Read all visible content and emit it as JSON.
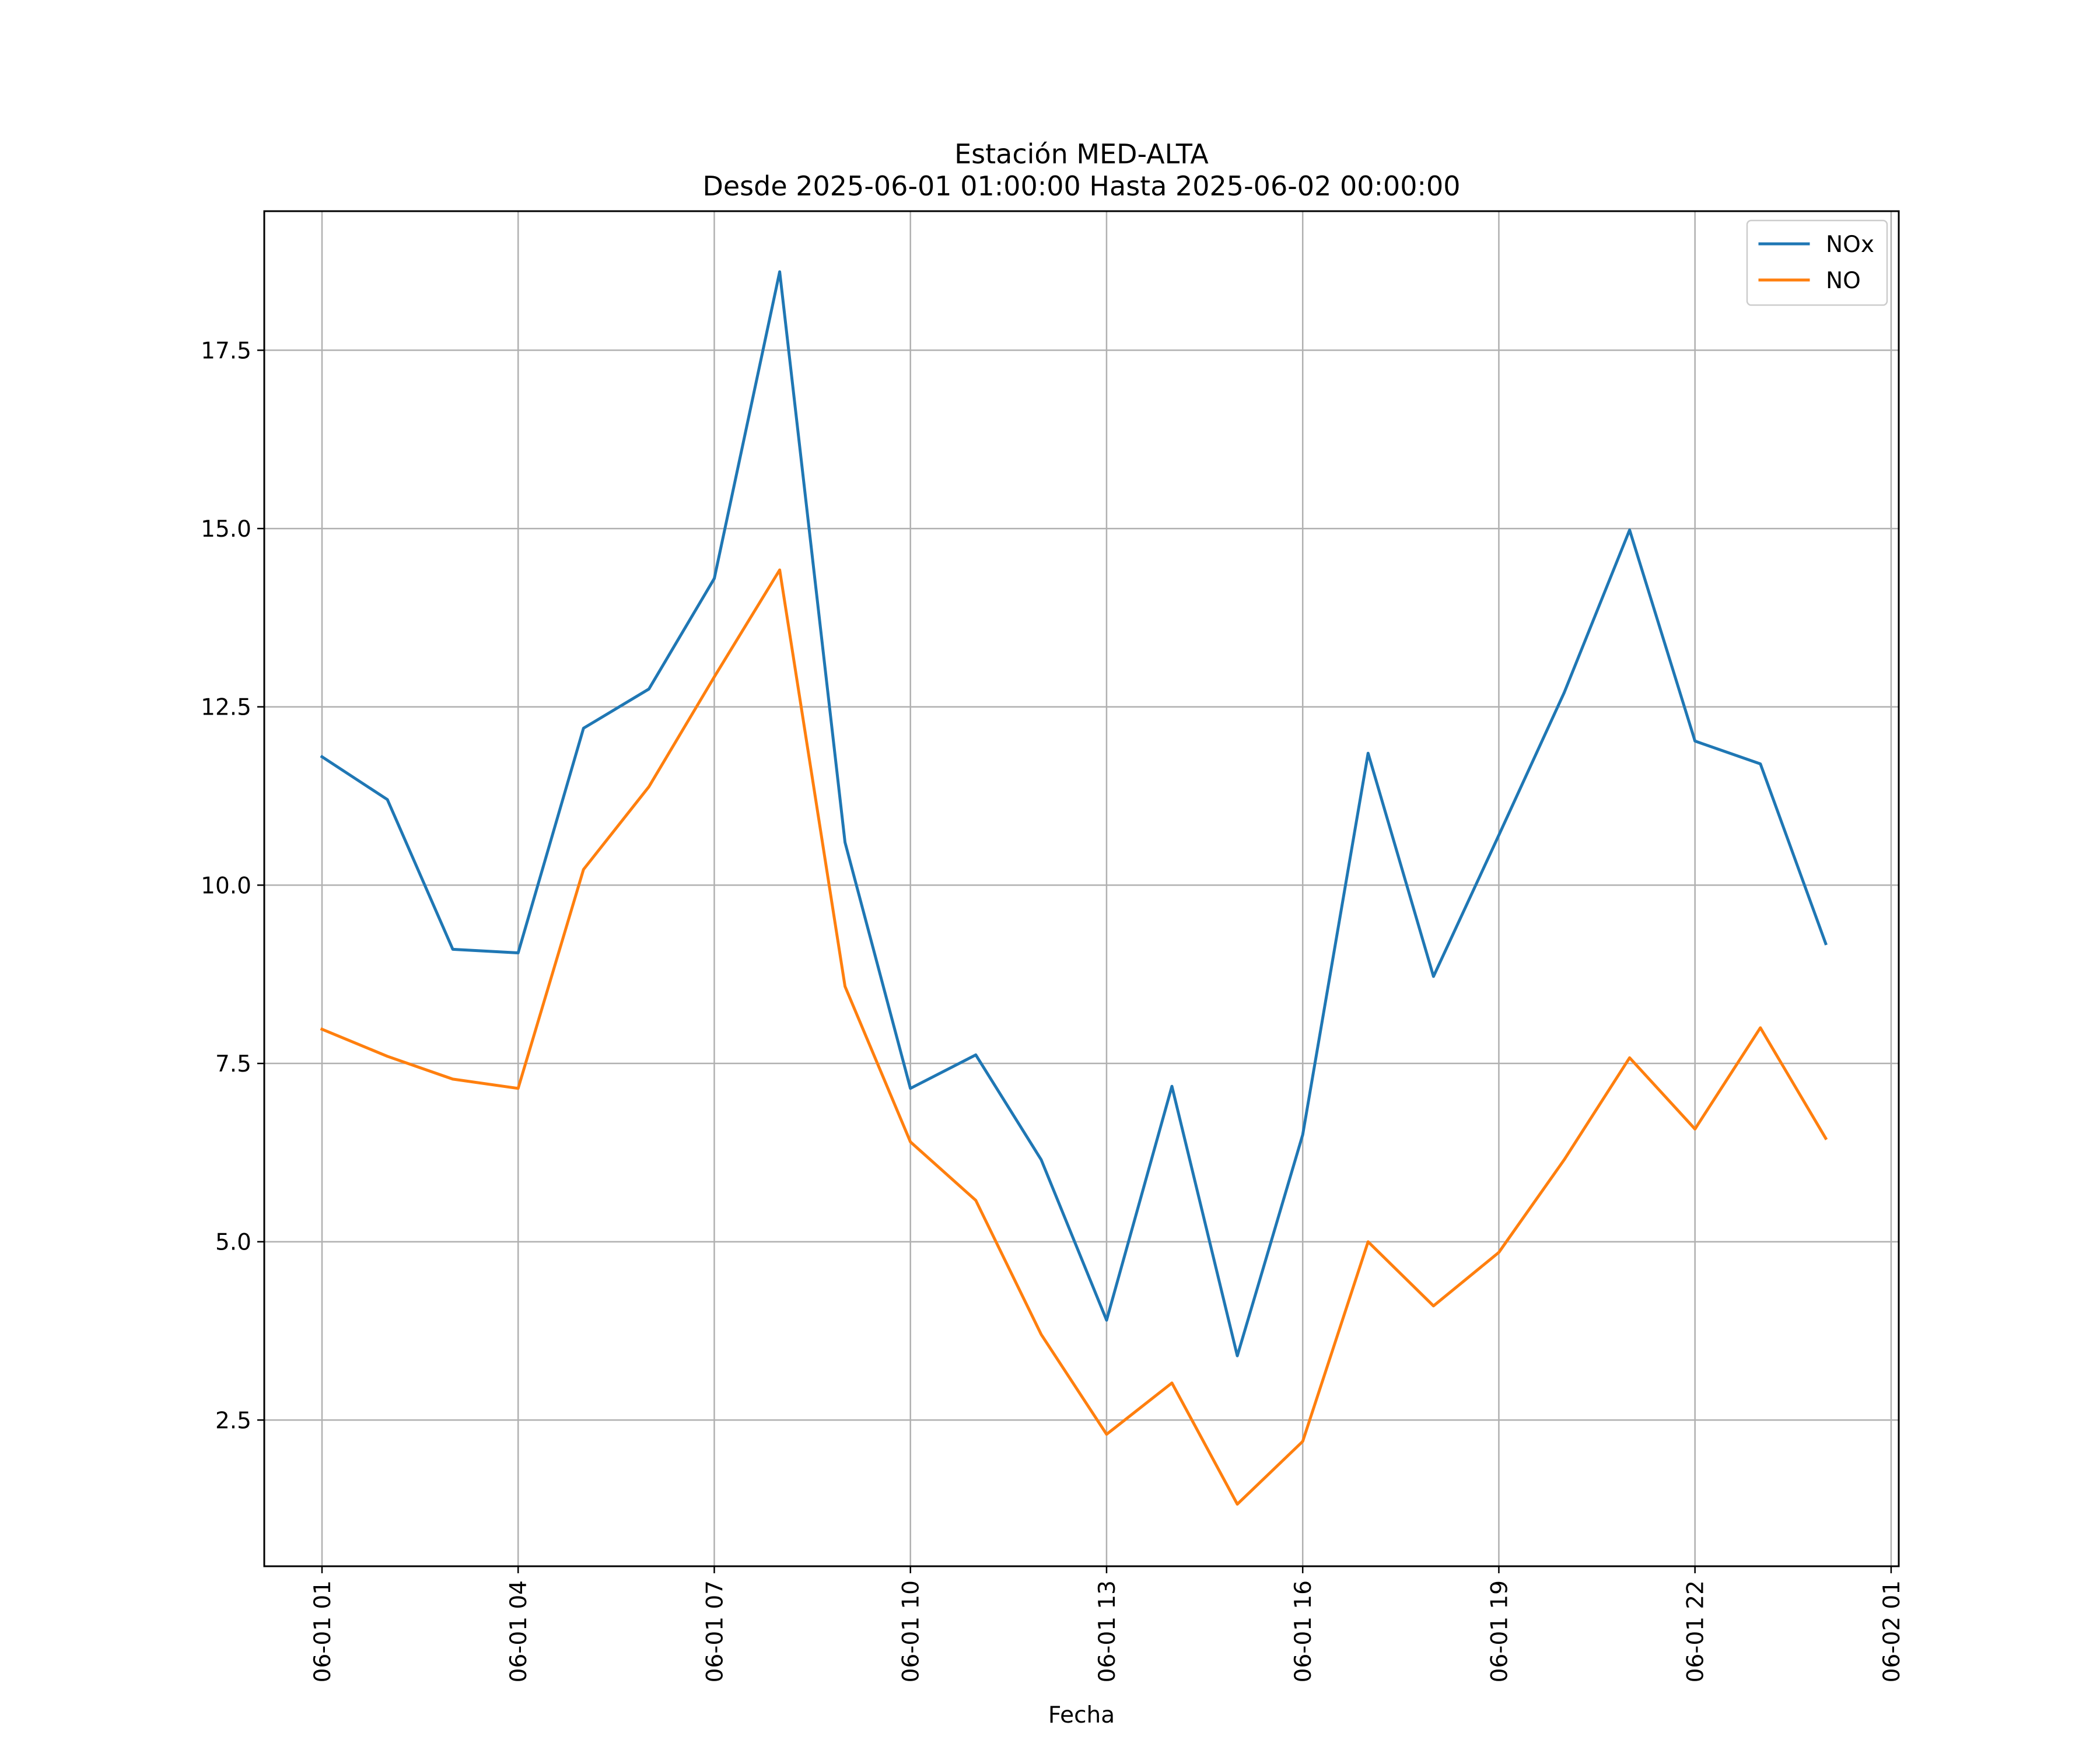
{
  "chart_data": {
    "type": "line",
    "title": "Estación MED-ALTA",
    "subtitle": "Desde 2025-06-01 01:00:00 Hasta 2025-06-02 00:00:00",
    "xlabel": "Fecha",
    "ylabel": "",
    "x": [
      "2025-06-01 01:00",
      "2025-06-01 02:00",
      "2025-06-01 03:00",
      "2025-06-01 04:00",
      "2025-06-01 05:00",
      "2025-06-01 06:00",
      "2025-06-01 07:00",
      "2025-06-01 08:00",
      "2025-06-01 09:00",
      "2025-06-01 10:00",
      "2025-06-01 11:00",
      "2025-06-01 12:00",
      "2025-06-01 13:00",
      "2025-06-01 14:00",
      "2025-06-01 15:00",
      "2025-06-01 16:00",
      "2025-06-01 17:00",
      "2025-06-01 18:00",
      "2025-06-01 19:00",
      "2025-06-01 20:00",
      "2025-06-01 21:00",
      "2025-06-01 22:00",
      "2025-06-01 23:00",
      "2025-06-02 00:00"
    ],
    "xlim": [
      "2025-06-01 00:07",
      "2025-06-02 01:07"
    ],
    "x_ticks": [
      "2025-06-01 01:00",
      "2025-06-01 04:00",
      "2025-06-01 07:00",
      "2025-06-01 10:00",
      "2025-06-01 13:00",
      "2025-06-01 16:00",
      "2025-06-01 19:00",
      "2025-06-01 22:00",
      "2025-06-02 01:00"
    ],
    "x_tick_labels": [
      "06-01 01",
      "06-01 04",
      "06-01 07",
      "06-01 10",
      "06-01 13",
      "06-01 16",
      "06-01 19",
      "06-01 22",
      "06-02 01"
    ],
    "ylim": [
      0.45,
      19.45
    ],
    "y_ticks": [
      2.5,
      5.0,
      7.5,
      10.0,
      12.5,
      15.0,
      17.5
    ],
    "y_tick_labels": [
      "2.5",
      "5.0",
      "7.5",
      "10.0",
      "12.5",
      "15.0",
      "17.5"
    ],
    "grid": true,
    "legend_position": "top-right",
    "series": [
      {
        "name": "NOx",
        "color": "#1f77b4",
        "values": [
          11.8,
          11.2,
          9.1,
          9.05,
          12.2,
          12.75,
          14.3,
          18.6,
          10.6,
          7.15,
          7.62,
          6.15,
          3.9,
          7.18,
          3.4,
          6.5,
          11.85,
          8.72,
          10.7,
          12.7,
          14.98,
          12.02,
          11.7,
          9.18
        ]
      },
      {
        "name": "NO",
        "color": "#ff7f0e",
        "values": [
          7.98,
          7.6,
          7.28,
          7.15,
          10.22,
          11.38,
          12.92,
          14.42,
          8.58,
          6.4,
          5.58,
          3.7,
          2.3,
          3.02,
          1.32,
          2.2,
          5.0,
          4.1,
          4.85,
          6.15,
          7.58,
          6.58,
          8.0,
          6.45
        ]
      }
    ]
  }
}
